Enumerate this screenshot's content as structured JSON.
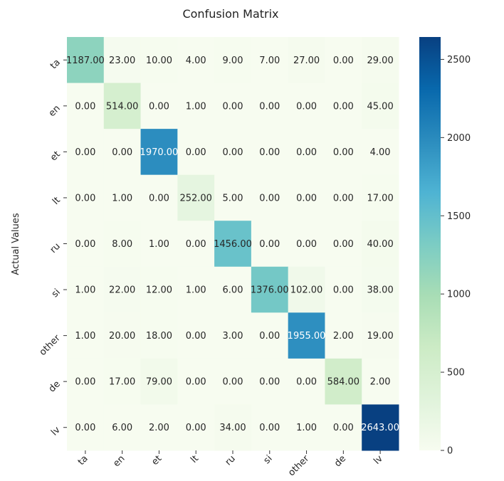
{
  "chart_data": {
    "type": "heatmap",
    "title": "Confusion Matrix",
    "ylabel": "Actual Values",
    "xlabel": "",
    "row_labels": [
      "ta",
      "en",
      "et",
      "lt",
      "ru",
      "si",
      "other",
      "de",
      "lv"
    ],
    "col_labels": [
      "ta",
      "en",
      "et",
      "lt",
      "ru",
      "si",
      "other",
      "de",
      "lv"
    ],
    "values": [
      [
        1187,
        23,
        10,
        4,
        9,
        7,
        27,
        0,
        29
      ],
      [
        0,
        514,
        0,
        1,
        0,
        0,
        0,
        0,
        45
      ],
      [
        0,
        0,
        1970,
        0,
        0,
        0,
        0,
        0,
        4
      ],
      [
        0,
        1,
        0,
        252,
        5,
        0,
        0,
        0,
        17
      ],
      [
        0,
        8,
        1,
        0,
        1456,
        0,
        0,
        0,
        40
      ],
      [
        1,
        22,
        12,
        1,
        6,
        1376,
        102,
        0,
        38
      ],
      [
        1,
        20,
        18,
        0,
        3,
        0,
        1955,
        2,
        19
      ],
      [
        0,
        17,
        79,
        0,
        0,
        0,
        0,
        584,
        2
      ],
      [
        0,
        6,
        2,
        0,
        34,
        0,
        1,
        0,
        2643
      ]
    ],
    "value_format": "2 decimals",
    "colormap": "GnBu",
    "colorbar": {
      "min": 0,
      "max": 2643,
      "ticks": [
        0,
        500,
        1000,
        1500,
        2000,
        2500
      ],
      "tick_labels": [
        "0",
        "500",
        "1000",
        "1500",
        "2000",
        "2500"
      ]
    },
    "colors": [
      "#f7fcf0",
      "#e0f3db",
      "#ccebc5",
      "#a8ddb5",
      "#7bccc4",
      "#4eb3d3",
      "#2b8cbe",
      "#0868ac",
      "#084081"
    ]
  }
}
